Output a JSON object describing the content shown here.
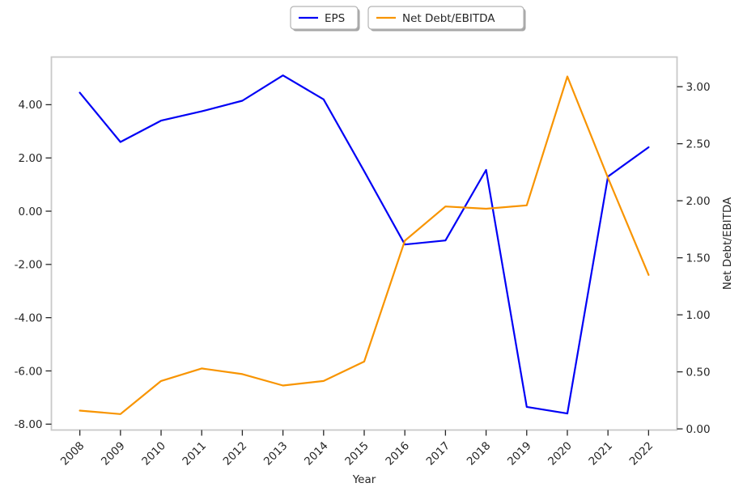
{
  "chart_data": {
    "type": "line",
    "x": [
      2008,
      2009,
      2010,
      2011,
      2012,
      2013,
      2014,
      2015,
      2016,
      2017,
      2018,
      2019,
      2020,
      2021,
      2022
    ],
    "xlabel": "Year",
    "right_ylabel": "Net Debt/EBITDA",
    "series": [
      {
        "name": "EPS",
        "axis": "left",
        "color": "#0000f5",
        "values": [
          4.45,
          2.6,
          3.4,
          3.75,
          4.15,
          5.1,
          4.2,
          1.5,
          -1.25,
          -1.1,
          1.55,
          -7.35,
          -7.6,
          1.3,
          2.4
        ]
      },
      {
        "name": "Net Debt/EBITDA",
        "axis": "right",
        "color": "#f89400",
        "values": [
          0.16,
          0.13,
          0.42,
          0.53,
          0.48,
          0.38,
          0.42,
          0.59,
          1.65,
          1.95,
          1.93,
          1.96,
          3.09,
          2.2,
          1.35
        ]
      }
    ],
    "left_axis": {
      "ticks": [
        4,
        2,
        0,
        -2,
        -4,
        -6,
        -8
      ],
      "lim": [
        -8.22,
        5.79
      ],
      "tick_format_decimals": 2
    },
    "right_axis": {
      "ticks": [
        3,
        2.5,
        2,
        1.5,
        1,
        0.5,
        0
      ],
      "lim": [
        -0.01,
        3.26
      ],
      "tick_format_decimals": 2
    },
    "xlim": [
      -0.7,
      14.7
    ],
    "grid": false,
    "legend_position": "top-center",
    "legend_entries": [
      "EPS",
      "Net Debt/EBITDA"
    ]
  },
  "colors": {
    "spine": "#c9c9c9",
    "tick_mark": "#262626",
    "tick_label": "#262626",
    "legend_border": "#b3b3b3",
    "legend_shadow": "#a6a6a6",
    "background": "#ffffff"
  }
}
